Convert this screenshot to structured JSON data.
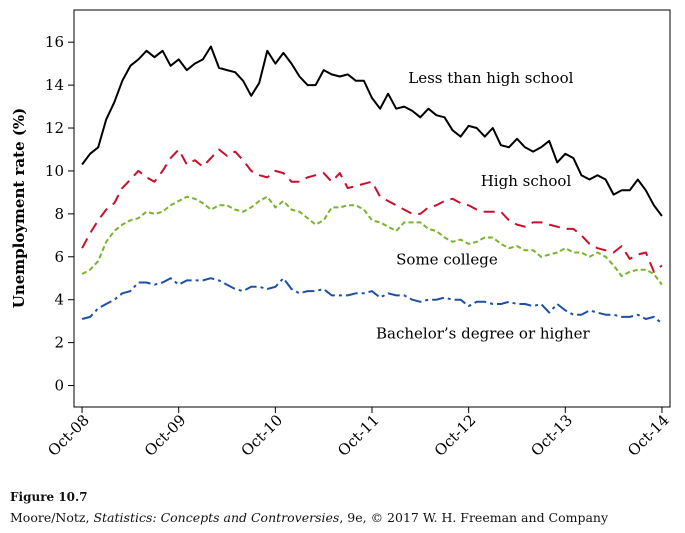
{
  "chart_data": {
    "type": "line",
    "ylabel": "Unemployment rate (%)",
    "xlabel": "",
    "ylim": [
      -1,
      17.5
    ],
    "yticks": [
      0,
      2,
      4,
      6,
      8,
      10,
      12,
      14,
      16
    ],
    "xlim": [
      -1,
      73
    ],
    "xticks": [
      {
        "x": 0,
        "label": "Oct-08"
      },
      {
        "x": 12,
        "label": "Oct-09"
      },
      {
        "x": 24,
        "label": "Oct-10"
      },
      {
        "x": 36,
        "label": "Oct-11"
      },
      {
        "x": 48,
        "label": "Oct-12"
      },
      {
        "x": 60,
        "label": "Oct-13"
      },
      {
        "x": 72,
        "label": "Oct-14"
      }
    ],
    "grid": false,
    "series": [
      {
        "name": "Less than high school",
        "color": "#000000",
        "dash": "solid",
        "values": [
          10.3,
          10.8,
          11.1,
          12.4,
          13.2,
          14.2,
          14.9,
          15.2,
          15.6,
          15.3,
          15.6,
          14.9,
          15.2,
          14.7,
          15.0,
          15.2,
          15.8,
          14.8,
          14.7,
          14.6,
          14.2,
          13.5,
          14.1,
          15.6,
          15.0,
          15.5,
          15.0,
          14.4,
          14.0,
          14.0,
          14.7,
          14.5,
          14.4,
          14.5,
          14.2,
          14.2,
          13.4,
          12.9,
          13.6,
          12.9,
          13.0,
          12.8,
          12.5,
          12.9,
          12.6,
          12.5,
          11.9,
          11.6,
          12.1,
          12.0,
          11.6,
          12.0,
          11.2,
          11.1,
          11.5,
          11.1,
          10.9,
          11.1,
          11.4,
          10.4,
          10.8,
          10.6,
          9.8,
          9.6,
          9.8,
          9.6,
          8.9,
          9.1,
          9.1,
          9.6,
          9.1,
          8.4,
          7.9
        ],
        "label_x": 40.5,
        "label_y": 14.1
      },
      {
        "name": "High school",
        "color": "#c8102e",
        "dash": "long",
        "values": [
          6.4,
          7.1,
          7.7,
          8.2,
          8.5,
          9.2,
          9.6,
          10.0,
          9.7,
          9.5,
          10.0,
          10.6,
          11.0,
          10.3,
          10.5,
          10.2,
          10.6,
          11.0,
          10.7,
          10.9,
          10.5,
          10.0,
          9.8,
          9.7,
          10.0,
          9.9,
          9.5,
          9.5,
          9.7,
          9.8,
          9.9,
          9.5,
          9.9,
          9.2,
          9.3,
          9.4,
          9.5,
          8.8,
          8.6,
          8.4,
          8.2,
          8.0,
          8.0,
          8.3,
          8.4,
          8.6,
          8.7,
          8.5,
          8.4,
          8.2,
          8.1,
          8.1,
          8.1,
          7.7,
          7.5,
          7.4,
          7.6,
          7.6,
          7.5,
          7.4,
          7.3,
          7.3,
          7.0,
          6.6,
          6.4,
          6.3,
          6.2,
          6.5,
          5.9,
          6.1,
          6.2,
          5.3,
          5.6
        ],
        "label_x": 49.5,
        "label_y": 9.3
      },
      {
        "name": "Some college",
        "color": "#7ab32e",
        "dash": "short",
        "values": [
          5.2,
          5.4,
          5.8,
          6.7,
          7.2,
          7.5,
          7.7,
          7.8,
          8.1,
          8.0,
          8.1,
          8.4,
          8.6,
          8.8,
          8.7,
          8.5,
          8.2,
          8.4,
          8.4,
          8.2,
          8.1,
          8.3,
          8.6,
          8.8,
          8.3,
          8.6,
          8.2,
          8.1,
          7.8,
          7.5,
          7.7,
          8.3,
          8.3,
          8.4,
          8.4,
          8.2,
          7.7,
          7.6,
          7.4,
          7.2,
          7.6,
          7.6,
          7.6,
          7.3,
          7.2,
          6.9,
          6.7,
          6.8,
          6.6,
          6.7,
          6.9,
          6.9,
          6.6,
          6.4,
          6.5,
          6.3,
          6.3,
          6.0,
          6.1,
          6.2,
          6.4,
          6.2,
          6.2,
          6.0,
          6.2,
          6.0,
          5.6,
          5.1,
          5.3,
          5.4,
          5.4,
          5.2,
          4.7
        ],
        "label_x": 39,
        "label_y": 5.65
      },
      {
        "name": "Bachelor’s degree or higher",
        "color": "#1e50a2",
        "dash": "dashdot",
        "values": [
          3.1,
          3.2,
          3.6,
          3.8,
          4.0,
          4.3,
          4.4,
          4.8,
          4.8,
          4.7,
          4.8,
          5.0,
          4.7,
          4.9,
          4.9,
          4.9,
          5.0,
          4.9,
          4.7,
          4.5,
          4.4,
          4.6,
          4.6,
          4.5,
          4.6,
          5.0,
          4.5,
          4.3,
          4.4,
          4.4,
          4.5,
          4.2,
          4.2,
          4.2,
          4.3,
          4.3,
          4.4,
          4.1,
          4.3,
          4.2,
          4.2,
          4.0,
          3.9,
          4.0,
          4.0,
          4.1,
          4.0,
          4.0,
          3.7,
          3.9,
          3.9,
          3.8,
          3.8,
          3.9,
          3.8,
          3.8,
          3.7,
          3.8,
          3.4,
          3.8,
          3.5,
          3.3,
          3.3,
          3.5,
          3.4,
          3.3,
          3.3,
          3.2,
          3.2,
          3.3,
          3.1,
          3.2,
          2.9
        ],
        "label_x": 36.5,
        "label_y": 2.2
      }
    ]
  },
  "caption": {
    "figure_label": "Figure 10.7",
    "credit_prefix": "Moore/Notz, ",
    "credit_title": "Statistics: Concepts and Controversies",
    "credit_suffix": ", 9e, © 2017 W. H. Freeman and Company"
  }
}
